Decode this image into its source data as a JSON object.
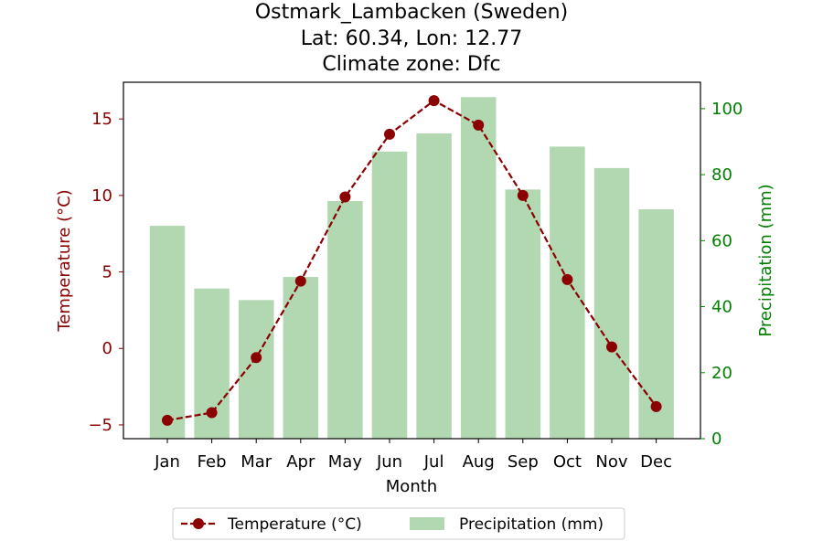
{
  "chart_data": {
    "type": "bar+line",
    "title_lines": [
      "Ostmark_Lambacken (Sweden)",
      "Lat: 60.34, Lon: 12.77",
      "Climate zone: Dfc"
    ],
    "xlabel": "Month",
    "categories": [
      "Jan",
      "Feb",
      "Mar",
      "Apr",
      "May",
      "Jun",
      "Jul",
      "Aug",
      "Sep",
      "Oct",
      "Nov",
      "Dec"
    ],
    "left_axis": {
      "label": "Temperature (°C)",
      "ylim": [
        -5.9,
        17.4
      ],
      "ticks": [
        -5,
        0,
        5,
        10,
        15
      ],
      "tick_labels": [
        "−5",
        "0",
        "5",
        "10",
        "15"
      ]
    },
    "right_axis": {
      "label": "Precipitation (mm)",
      "ylim": [
        0,
        108
      ],
      "ticks": [
        0,
        20,
        40,
        60,
        80,
        100
      ],
      "tick_labels": [
        "0",
        "20",
        "40",
        "60",
        "80",
        "100"
      ]
    },
    "series": [
      {
        "name": "Temperature (°C)",
        "kind": "line",
        "axis": "left",
        "color": "#8b0000",
        "style": "dashed-with-circle-markers",
        "values": [
          -4.7,
          -4.2,
          -0.6,
          4.4,
          9.9,
          14.0,
          16.2,
          14.6,
          10.0,
          4.5,
          0.1,
          -3.8
        ]
      },
      {
        "name": "Precipitation (mm)",
        "kind": "bar",
        "axis": "right",
        "color": "#b2d8b2",
        "values": [
          64.5,
          45.5,
          42.0,
          49.0,
          72.0,
          87.0,
          92.5,
          103.5,
          75.5,
          88.5,
          82.0,
          69.5
        ]
      }
    ],
    "legend_position": "bottom-center",
    "grid": false,
    "colors": {
      "left_axis": "#8b0000",
      "right_axis": "#008000",
      "frame": "#000000"
    }
  }
}
